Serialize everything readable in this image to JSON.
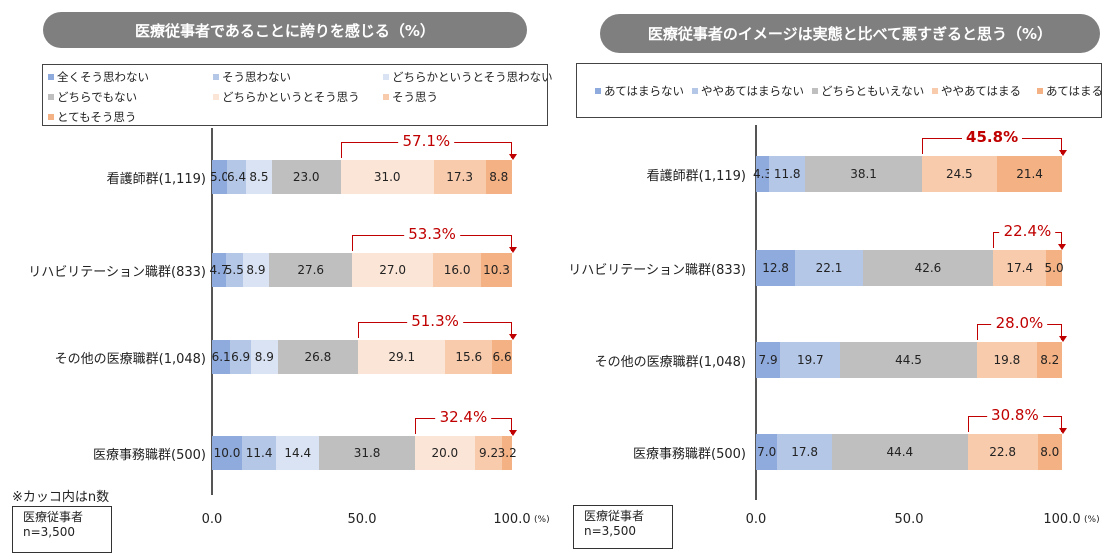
{
  "chart_data": [
    {
      "type": "bar",
      "stacked": true,
      "orientation": "horizontal",
      "title": "医療従事者であることに誇りを感じる（%）",
      "legend": [
        "全くそう思わない",
        "そう思わない",
        "どちらかというとそう思わない",
        "どちらでもない",
        "どちらかというとそう思う",
        "そう思う",
        "とてもそう思う"
      ],
      "colors": [
        "#8faadc",
        "#b4c7e7",
        "#dae3f3",
        "#bfbfbf",
        "#fbe5d6",
        "#f8cbad",
        "#f4b183"
      ],
      "categories": [
        "看護師群(1,119)",
        "リハビリテーション職群(833)",
        "その他の医療職群(1,048)",
        "医療事務職群(500)"
      ],
      "values": [
        [
          5.0,
          6.4,
          8.5,
          23.0,
          31.0,
          17.3,
          8.8
        ],
        [
          4.7,
          5.5,
          8.9,
          27.6,
          27.0,
          16.0,
          10.3
        ],
        [
          6.1,
          6.9,
          8.9,
          26.8,
          29.1,
          15.6,
          6.6
        ],
        [
          10.0,
          11.4,
          14.4,
          31.8,
          20.0,
          9.2,
          3.2
        ]
      ],
      "positive_start_index": 4,
      "positive_totals": [
        "57.1%",
        "53.3%",
        "51.3%",
        "32.4%"
      ],
      "xticks": [
        "0.0",
        "50.0",
        "100.0"
      ],
      "xunit": "(%)",
      "xlim": [
        0,
        100
      ]
    },
    {
      "type": "bar",
      "stacked": true,
      "orientation": "horizontal",
      "title": "医療従事者のイメージは実態と比べて悪すぎると思う（%）",
      "legend": [
        "あてはまらない",
        "ややあてはまらない",
        "どちらともいえない",
        "ややあてはまる",
        "あてはまる"
      ],
      "colors": [
        "#8faadc",
        "#b4c7e7",
        "#bfbfbf",
        "#f8cbad",
        "#f4b183"
      ],
      "categories": [
        "看護師群(1,119)",
        "リハビリテーション職群(833)",
        "その他の医療職群(1,048)",
        "医療事務職群(500)"
      ],
      "values": [
        [
          4.3,
          11.8,
          38.1,
          24.5,
          21.4
        ],
        [
          12.8,
          22.1,
          42.6,
          17.4,
          5.0
        ],
        [
          7.9,
          19.7,
          44.5,
          19.8,
          8.2
        ],
        [
          7.0,
          17.8,
          44.4,
          22.8,
          8.0
        ]
      ],
      "positive_start_index": 3,
      "positive_totals": [
        "45.8%",
        "22.4%",
        "28.0%",
        "30.8%"
      ],
      "xticks": [
        "0.0",
        "50.0",
        "100.0"
      ],
      "xunit": "(%)",
      "xlim": [
        0,
        100
      ]
    }
  ],
  "notes": {
    "n_note": "※カッコ内はn数",
    "sample_label": "医療従事者",
    "sample_n": "n=3,500"
  }
}
